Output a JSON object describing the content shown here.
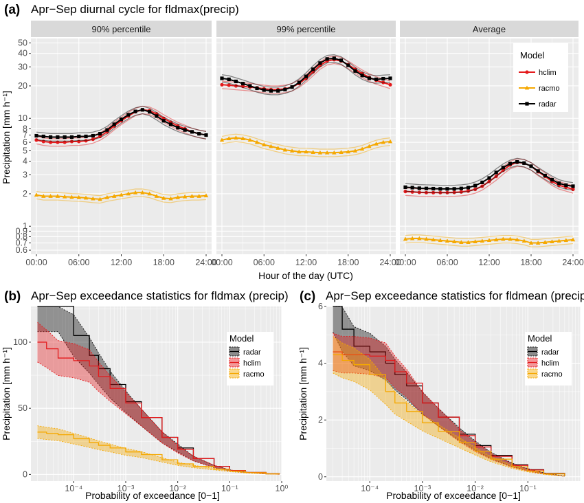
{
  "colors": {
    "hclim": "#e41a1c",
    "racmo": "#f5a800",
    "radar": "#000000",
    "panel_bg": "#ebebeb",
    "grid": "#ffffff",
    "strip_bg": "#d9d9d9"
  },
  "chart_data": [
    {
      "label": "(a)",
      "title": "Apr−Sep diurnal cycle for fldmax(precip)",
      "type": "line",
      "xlabel": "Hour of the day (UTC)",
      "ylabel": "Precipitation [mm h⁻¹]",
      "yscale": "log",
      "ylim": [
        0.55,
        55
      ],
      "xlim": [
        0,
        24
      ],
      "x_ticks": [
        "00:00",
        "06:00",
        "12:00",
        "18:00",
        "24:00"
      ],
      "y_ticks": [
        "0.6",
        "0.7",
        "0.8",
        "0.9",
        "1",
        "2",
        "3",
        "4",
        "5",
        "6",
        "7",
        "8",
        "10",
        "20",
        "30",
        "40",
        "50"
      ],
      "legend": {
        "title": "Model",
        "position": "top-right",
        "entries": [
          "hclim",
          "racmo",
          "radar"
        ]
      },
      "x": [
        0,
        1,
        2,
        3,
        4,
        5,
        6,
        7,
        8,
        9,
        10,
        11,
        12,
        13,
        14,
        15,
        16,
        17,
        18,
        19,
        20,
        21,
        22,
        23,
        24
      ],
      "facets": [
        {
          "strip": "90% percentile",
          "series": [
            {
              "name": "hclim",
              "values": [
                6.3,
                6.1,
                6.0,
                6.0,
                6.0,
                6.1,
                6.1,
                6.2,
                6.4,
                6.8,
                7.5,
                8.5,
                9.5,
                10.5,
                11.5,
                12.0,
                11.8,
                11.0,
                10.0,
                9.2,
                8.5,
                8.0,
                7.5,
                7.2,
                7.0
              ]
            },
            {
              "name": "racmo",
              "values": [
                1.95,
                1.9,
                1.9,
                1.9,
                1.88,
                1.86,
                1.85,
                1.83,
                1.8,
                1.78,
                1.85,
                1.9,
                1.95,
                2.0,
                2.05,
                2.05,
                2.0,
                1.9,
                1.82,
                1.8,
                1.85,
                1.88,
                1.9,
                1.9,
                1.92
              ]
            },
            {
              "name": "radar",
              "values": [
                6.9,
                6.8,
                6.7,
                6.7,
                6.7,
                6.7,
                6.8,
                6.8,
                6.9,
                7.2,
                7.8,
                8.8,
                9.8,
                10.8,
                11.6,
                12.0,
                11.5,
                10.5,
                9.5,
                8.8,
                8.2,
                7.8,
                7.5,
                7.2,
                7.0
              ]
            }
          ]
        },
        {
          "strip": "99% percentile",
          "series": [
            {
              "name": "hclim",
              "values": [
                20.5,
                20.3,
                20.0,
                19.8,
                19.5,
                19.2,
                18.8,
                18.5,
                18.5,
                18.8,
                19.5,
                21.0,
                23.5,
                27.0,
                31.0,
                34.0,
                35.0,
                34.0,
                31.5,
                28.5,
                26.0,
                24.0,
                22.5,
                21.5,
                20.5
              ]
            },
            {
              "name": "racmo",
              "values": [
                6.3,
                6.5,
                6.6,
                6.5,
                6.3,
                6.0,
                5.7,
                5.5,
                5.3,
                5.1,
                5.0,
                4.9,
                4.9,
                4.85,
                4.8,
                4.8,
                4.8,
                4.85,
                4.9,
                5.0,
                5.2,
                5.5,
                5.8,
                6.0,
                6.1
              ]
            },
            {
              "name": "radar",
              "values": [
                23.5,
                23.0,
                22.0,
                21.0,
                20.0,
                19.0,
                18.3,
                18.0,
                18.0,
                18.5,
                19.5,
                21.5,
                24.5,
                28.5,
                32.5,
                35.5,
                36.0,
                34.5,
                31.0,
                27.5,
                25.0,
                23.5,
                23.0,
                23.3,
                23.5
              ]
            }
          ]
        },
        {
          "strip": "Average",
          "series": [
            {
              "name": "hclim",
              "values": [
                2.1,
                2.08,
                2.06,
                2.05,
                2.05,
                2.05,
                2.05,
                2.06,
                2.08,
                2.12,
                2.2,
                2.35,
                2.6,
                2.9,
                3.3,
                3.7,
                3.9,
                3.85,
                3.6,
                3.2,
                2.9,
                2.6,
                2.4,
                2.3,
                2.2
              ]
            },
            {
              "name": "racmo",
              "values": [
                0.76,
                0.77,
                0.77,
                0.76,
                0.75,
                0.74,
                0.73,
                0.72,
                0.71,
                0.71,
                0.72,
                0.73,
                0.74,
                0.75,
                0.76,
                0.76,
                0.75,
                0.73,
                0.7,
                0.7,
                0.71,
                0.72,
                0.73,
                0.74,
                0.75
              ]
            },
            {
              "name": "radar",
              "values": [
                2.3,
                2.28,
                2.25,
                2.24,
                2.23,
                2.22,
                2.22,
                2.22,
                2.24,
                2.28,
                2.38,
                2.55,
                2.8,
                3.15,
                3.5,
                3.8,
                3.95,
                3.85,
                3.6,
                3.25,
                2.95,
                2.7,
                2.5,
                2.4,
                2.35
              ]
            }
          ]
        }
      ]
    },
    {
      "label": "(b)",
      "title": "Apr−Sep exceedance statistics for fldmax (precip)",
      "type": "line",
      "xlabel": "Probability of exceedance [0−1]",
      "ylabel": "Precipitation [mm h⁻¹]",
      "xscale": "log",
      "xlim": [
        1.5e-05,
        1
      ],
      "ylim": [
        -5,
        127
      ],
      "x_ticks": [
        "10⁻⁴",
        "10⁻³",
        "10⁻²",
        "10⁻¹",
        "10⁰"
      ],
      "y_ticks": [
        "0",
        "50",
        "100"
      ],
      "legend": {
        "title": "Model",
        "position": "right",
        "entries": [
          "radar",
          "hclim",
          "racmo"
        ]
      },
      "x": [
        2e-05,
        3e-05,
        5e-05,
        0.0001,
        0.0002,
        0.0003,
        0.0005,
        0.001,
        0.002,
        0.005,
        0.01,
        0.02,
        0.05,
        0.1,
        0.2,
        0.5,
        0.9
      ],
      "series": [
        {
          "name": "radar",
          "values": [
            127,
            127,
            127,
            105,
            90,
            80,
            68,
            55,
            43,
            28,
            20,
            12,
            6,
            3,
            1.5,
            0.5,
            0.1
          ]
        },
        {
          "name": "hclim",
          "values": [
            100,
            95,
            88,
            86,
            82,
            74,
            65,
            54,
            43,
            28,
            19,
            12,
            6,
            3,
            1.5,
            0.5,
            0.1
          ]
        },
        {
          "name": "racmo",
          "values": [
            32,
            31,
            30,
            27,
            24,
            22,
            20,
            17,
            15,
            11,
            8,
            6,
            4,
            2.5,
            1.3,
            0.4,
            0.1
          ]
        }
      ]
    },
    {
      "label": "(c)",
      "title": "Apr−Sep exceedance statistics for fldmean (precip)",
      "type": "line",
      "xlabel": "Probability of exceedance [0−1]",
      "ylabel": "Precipitation [mm h⁻¹]",
      "xscale": "log",
      "xlim": [
        1.5e-05,
        1
      ],
      "ylim": [
        -0.15,
        6
      ],
      "x_ticks": [
        "10⁻⁴",
        "10⁻³",
        "10⁻²",
        "10⁻¹"
      ],
      "y_ticks": [
        "0",
        "2",
        "4",
        "6"
      ],
      "legend": {
        "title": "Model",
        "position": "right",
        "entries": [
          "radar",
          "hclim",
          "racmo"
        ]
      },
      "x": [
        2e-05,
        3e-05,
        5e-05,
        0.0001,
        0.0002,
        0.0003,
        0.0005,
        0.001,
        0.002,
        0.005,
        0.01,
        0.02,
        0.05,
        0.1,
        0.2,
        0.5
      ],
      "series": [
        {
          "name": "radar",
          "values": [
            6.0,
            5.2,
            4.6,
            4.4,
            4.0,
            3.6,
            3.2,
            2.6,
            2.1,
            1.5,
            1.1,
            0.75,
            0.42,
            0.25,
            0.12,
            0.02
          ]
        },
        {
          "name": "hclim",
          "values": [
            4.4,
            4.3,
            4.3,
            4.25,
            4.1,
            3.7,
            3.3,
            2.6,
            2.1,
            1.45,
            1.05,
            0.72,
            0.4,
            0.24,
            0.11,
            0.02
          ]
        },
        {
          "name": "racmo",
          "values": [
            4.3,
            4.1,
            3.95,
            3.6,
            3.0,
            2.6,
            2.3,
            1.9,
            1.6,
            1.2,
            0.9,
            0.62,
            0.35,
            0.2,
            0.1,
            0.02
          ]
        }
      ]
    }
  ]
}
